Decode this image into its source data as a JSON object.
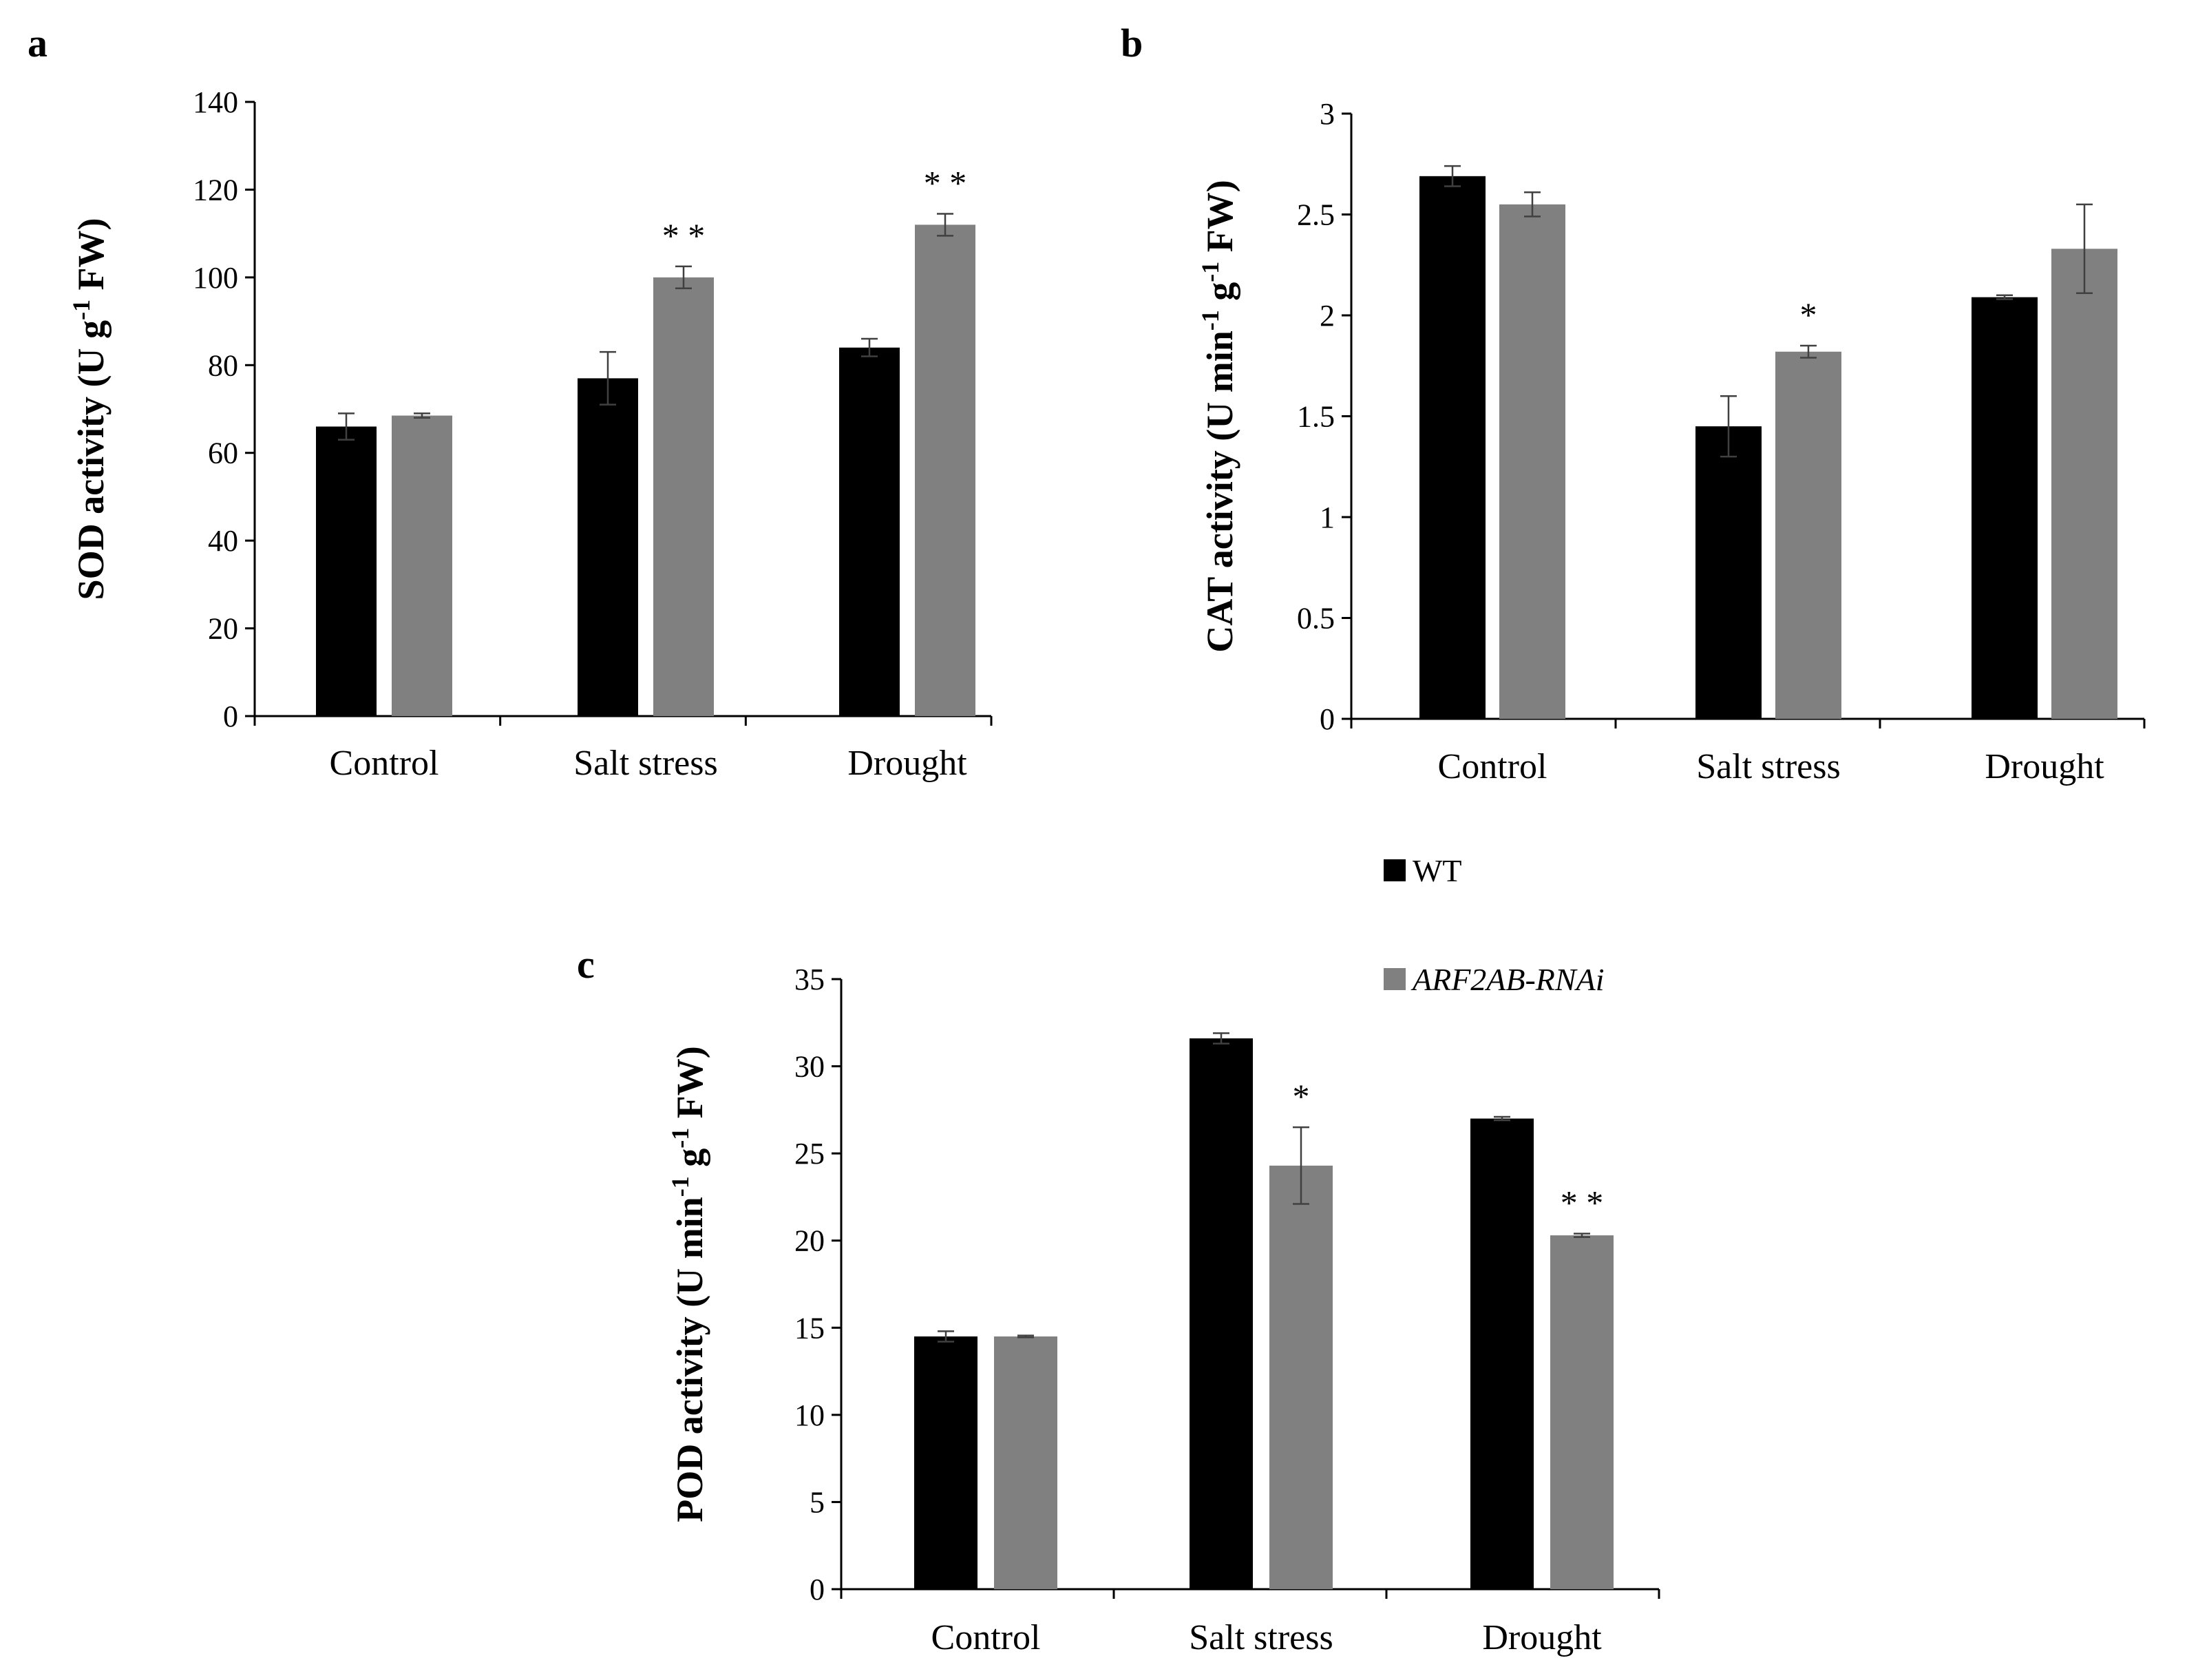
{
  "chart_data": [
    {
      "panel": "a",
      "type": "bar",
      "ylabel": "SOD activity (U g",
      "ylabel_sup": "-1",
      "ylabel_tail": " FW)",
      "ylim": [
        0,
        140
      ],
      "yticks": [
        0,
        20,
        40,
        60,
        80,
        100,
        120,
        140
      ],
      "categories": [
        "Control",
        "Salt stress",
        "Drought"
      ],
      "series": [
        {
          "name": "WT",
          "color": "#000000",
          "values": [
            66,
            77,
            84
          ],
          "errors": [
            3,
            6,
            2
          ]
        },
        {
          "name": "ARF2AB-RNAi",
          "color": "#808080",
          "values": [
            68.5,
            100,
            112
          ],
          "errors": [
            0.5,
            2.5,
            2.5
          ],
          "significance": [
            "",
            "**",
            "**"
          ]
        }
      ]
    },
    {
      "panel": "b",
      "type": "bar",
      "ylabel": "CAT activity (U min",
      "ylabel_sup": "-1",
      "ylabel_mid": " g",
      "ylabel_sup2": "-1",
      "ylabel_tail": " FW)",
      "ylim": [
        0,
        3
      ],
      "yticks": [
        0,
        0.5,
        1,
        1.5,
        2,
        2.5,
        3
      ],
      "categories": [
        "Control",
        "Salt stress",
        "Drought"
      ],
      "series": [
        {
          "name": "WT",
          "color": "#000000",
          "values": [
            2.69,
            1.45,
            2.09
          ],
          "errors": [
            0.05,
            0.15,
            0.01
          ]
        },
        {
          "name": "ARF2AB-RNAi",
          "color": "#808080",
          "values": [
            2.55,
            1.82,
            2.33
          ],
          "errors": [
            0.06,
            0.03,
            0.22
          ],
          "significance": [
            "",
            "*",
            ""
          ]
        }
      ]
    },
    {
      "panel": "c",
      "type": "bar",
      "ylabel": "POD activity  (U min",
      "ylabel_sup": "-1",
      "ylabel_mid": " g",
      "ylabel_sup2": "-1",
      "ylabel_tail": " FW)",
      "ylim": [
        0,
        35
      ],
      "yticks": [
        0,
        5,
        10,
        15,
        20,
        25,
        30,
        35
      ],
      "categories": [
        "Control",
        "Salt stress",
        "Drought"
      ],
      "series": [
        {
          "name": "WT",
          "color": "#000000",
          "values": [
            14.5,
            31.6,
            27
          ],
          "errors": [
            0.3,
            0.3,
            0.1
          ]
        },
        {
          "name": "ARF2AB-RNAi",
          "color": "#808080",
          "values": [
            14.5,
            24.3,
            20.3
          ],
          "errors": [
            0.05,
            2.2,
            0.1
          ],
          "significance": [
            "",
            "*",
            "**"
          ]
        }
      ]
    }
  ],
  "legend": [
    {
      "label": "WT",
      "color": "#000000",
      "italic": false
    },
    {
      "label": "ARF2AB-RNAi",
      "color": "#808080",
      "italic": true
    }
  ]
}
